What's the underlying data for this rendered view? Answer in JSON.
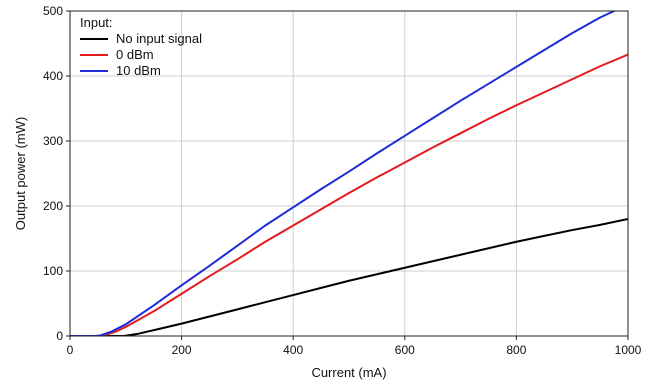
{
  "chart_data": {
    "type": "line",
    "xlabel": "Current (mA)",
    "ylabel": "Output power (mW)",
    "xlim": [
      0,
      1000
    ],
    "ylim": [
      0,
      500
    ],
    "xticks": [
      0,
      200,
      400,
      600,
      800,
      1000
    ],
    "yticks": [
      0,
      100,
      200,
      300,
      400,
      500
    ],
    "grid": true,
    "legend": {
      "title": "Input:",
      "position": "top-left"
    },
    "series": [
      {
        "name": "No input signal",
        "color": "#000000",
        "x": [
          0,
          95,
          100,
          120,
          140,
          160,
          200,
          250,
          300,
          350,
          400,
          450,
          500,
          550,
          600,
          650,
          700,
          750,
          800,
          850,
          900,
          950,
          1000
        ],
        "y": [
          0,
          0,
          0.5,
          3,
          7,
          11,
          19,
          30,
          41,
          52,
          63,
          74,
          85,
          95,
          105,
          115,
          125,
          135,
          145,
          154,
          163,
          171,
          180
        ]
      },
      {
        "name": "0 dBm",
        "color": "#e41a1c",
        "x": [
          0,
          50,
          60,
          80,
          100,
          150,
          200,
          250,
          300,
          350,
          400,
          450,
          500,
          550,
          600,
          650,
          700,
          750,
          800,
          850,
          900,
          950,
          1000
        ],
        "y": [
          0,
          0,
          1,
          6,
          14,
          38,
          65,
          92,
          118,
          145,
          170,
          195,
          220,
          244,
          267,
          290,
          312,
          334,
          355,
          375,
          395,
          415,
          433
        ]
      },
      {
        "name": "10 dBm",
        "color": "#1f2bd6",
        "x": [
          0,
          45,
          55,
          75,
          100,
          150,
          200,
          250,
          300,
          350,
          400,
          450,
          500,
          550,
          600,
          650,
          700,
          750,
          800,
          850,
          900,
          950,
          1000
        ],
        "y": [
          0,
          0,
          1,
          7,
          18,
          47,
          78,
          108,
          139,
          170,
          198,
          226,
          253,
          281,
          308,
          335,
          362,
          388,
          414,
          440,
          466,
          490,
          510
        ]
      }
    ]
  }
}
